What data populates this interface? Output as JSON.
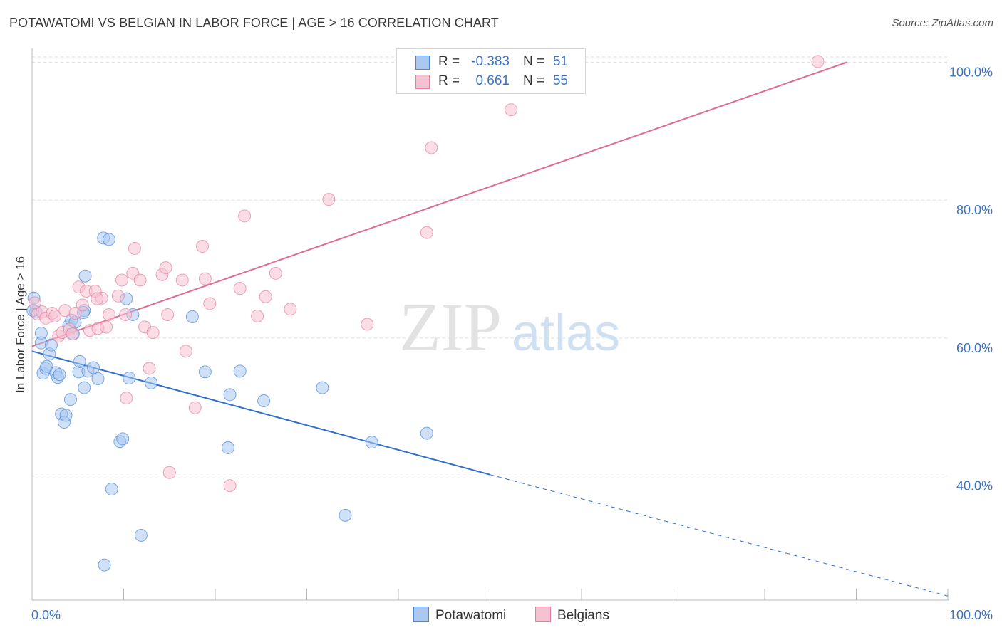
{
  "title": "POTAWATOMI VS BELGIAN IN LABOR FORCE | AGE > 16 CORRELATION CHART",
  "source": "Source: ZipAtlas.com",
  "watermark": {
    "zip": "ZIP",
    "atlas": "atlas"
  },
  "legend": {
    "r_label": "R =",
    "n_label": "N =",
    "rows": [
      {
        "name": "Potawatomi",
        "r": "-0.383",
        "n": "51"
      },
      {
        "name": "Belgians",
        "r": "0.661",
        "n": "55"
      }
    ]
  },
  "colors": {
    "potawatomi_fill": "#aac8f0",
    "potawatomi_stroke": "#4a86d8",
    "potawatomi_line": "#2f6fce",
    "belgians_fill": "#f7c1d2",
    "belgians_stroke": "#e37fa0",
    "belgians_line": "#e06b93",
    "axis_label": "#3a72c4",
    "grid": "#dddddd"
  },
  "chart_data": {
    "type": "scatter",
    "title": "POTAWATOMI VS BELGIAN IN LABOR FORCE | AGE > 16 CORRELATION CHART",
    "xlabel": "",
    "ylabel": "In Labor Force | Age > 16",
    "xlim": [
      0,
      100
    ],
    "ylim": [
      22,
      102
    ],
    "x_tick_labels": [
      "0.0%",
      "100.0%"
    ],
    "y_ticks": [
      40,
      60,
      80,
      100
    ],
    "y_tick_labels": [
      "40.0%",
      "60.0%",
      "80.0%",
      "100.0%"
    ],
    "grid": true,
    "series": [
      {
        "name": "Potawatomi",
        "r": -0.383,
        "n": 51,
        "trend": {
          "x0": 0,
          "y0": 58.1,
          "x1": 50,
          "y1": 40.2,
          "dash_to_x": 100,
          "dash_to_y": 22.6
        },
        "points": [
          [
            0.2,
            65.8
          ],
          [
            0.4,
            63.8
          ],
          [
            1.0,
            60.7
          ],
          [
            1.0,
            59.3
          ],
          [
            1.2,
            54.9
          ],
          [
            1.5,
            55.6
          ],
          [
            1.6,
            55.9
          ],
          [
            1.9,
            57.7
          ],
          [
            2.1,
            59.0
          ],
          [
            2.6,
            55.0
          ],
          [
            2.8,
            54.3
          ],
          [
            3.0,
            54.7
          ],
          [
            3.2,
            49.0
          ],
          [
            3.5,
            47.8
          ],
          [
            3.7,
            48.8
          ],
          [
            4.2,
            51.1
          ],
          [
            4.0,
            61.8
          ],
          [
            4.3,
            62.6
          ],
          [
            4.7,
            62.3
          ],
          [
            4.5,
            60.6
          ],
          [
            5.1,
            55.1
          ],
          [
            5.2,
            56.6
          ],
          [
            5.7,
            64.0
          ],
          [
            5.6,
            63.7
          ],
          [
            5.7,
            52.8
          ],
          [
            5.8,
            69.0
          ],
          [
            6.1,
            55.2
          ],
          [
            6.7,
            55.7
          ],
          [
            7.2,
            54.1
          ],
          [
            7.8,
            74.5
          ],
          [
            8.4,
            74.3
          ],
          [
            8.7,
            38.1
          ],
          [
            7.9,
            27.1
          ],
          [
            9.6,
            45.0
          ],
          [
            9.9,
            45.4
          ],
          [
            10.3,
            65.7
          ],
          [
            10.6,
            54.2
          ],
          [
            11.0,
            63.4
          ],
          [
            11.9,
            31.4
          ],
          [
            13.0,
            53.5
          ],
          [
            17.5,
            63.1
          ],
          [
            18.9,
            55.1
          ],
          [
            21.4,
            44.1
          ],
          [
            21.6,
            51.8
          ],
          [
            22.7,
            55.2
          ],
          [
            25.3,
            50.9
          ],
          [
            31.7,
            52.8
          ],
          [
            34.2,
            34.3
          ],
          [
            37.1,
            44.9
          ],
          [
            43.1,
            46.2
          ],
          [
            0.1,
            64.0
          ]
        ]
      },
      {
        "name": "Belgians",
        "r": 0.661,
        "n": 55,
        "trend": {
          "x0": 0,
          "y0": 58.8,
          "x1": 89,
          "y1": 100.0
        },
        "points": [
          [
            0.3,
            65.1
          ],
          [
            0.6,
            63.5
          ],
          [
            1.1,
            63.8
          ],
          [
            1.5,
            62.9
          ],
          [
            2.2,
            63.6
          ],
          [
            2.5,
            63.2
          ],
          [
            2.9,
            60.3
          ],
          [
            3.3,
            60.8
          ],
          [
            3.6,
            64.0
          ],
          [
            4.1,
            61.3
          ],
          [
            4.4,
            60.6
          ],
          [
            4.7,
            63.6
          ],
          [
            5.1,
            67.4
          ],
          [
            5.5,
            64.8
          ],
          [
            5.9,
            66.8
          ],
          [
            6.3,
            61.1
          ],
          [
            6.9,
            66.8
          ],
          [
            7.2,
            61.4
          ],
          [
            7.6,
            65.8
          ],
          [
            8.1,
            61.6
          ],
          [
            8.4,
            63.4
          ],
          [
            9.4,
            66.1
          ],
          [
            9.8,
            68.4
          ],
          [
            10.2,
            63.4
          ],
          [
            11.0,
            69.4
          ],
          [
            11.2,
            73.0
          ],
          [
            11.8,
            68.4
          ],
          [
            12.3,
            61.6
          ],
          [
            12.8,
            55.6
          ],
          [
            13.2,
            60.8
          ],
          [
            14.2,
            69.2
          ],
          [
            14.6,
            70.2
          ],
          [
            15.0,
            40.5
          ],
          [
            14.8,
            63.4
          ],
          [
            16.4,
            68.4
          ],
          [
            16.8,
            58.1
          ],
          [
            17.8,
            49.9
          ],
          [
            18.6,
            73.3
          ],
          [
            18.9,
            68.6
          ],
          [
            19.4,
            65.0
          ],
          [
            21.6,
            38.6
          ],
          [
            22.7,
            67.2
          ],
          [
            23.2,
            77.7
          ],
          [
            24.6,
            63.2
          ],
          [
            25.5,
            66.0
          ],
          [
            26.6,
            69.4
          ],
          [
            28.2,
            64.2
          ],
          [
            32.4,
            80.1
          ],
          [
            36.6,
            62.0
          ],
          [
            43.1,
            75.3
          ],
          [
            43.6,
            87.6
          ],
          [
            52.3,
            93.1
          ],
          [
            85.8,
            100.1
          ],
          [
            10.3,
            51.3
          ],
          [
            7.1,
            65.7
          ]
        ]
      }
    ]
  }
}
